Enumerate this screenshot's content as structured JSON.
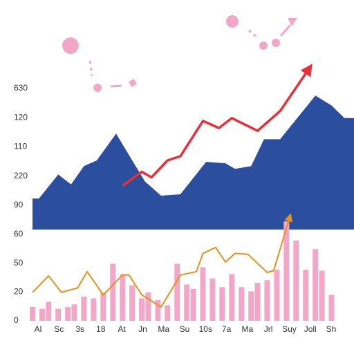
{
  "chart_data": [
    {
      "type": "area",
      "y_labels": [
        "630",
        "120",
        "110",
        "220",
        "90"
      ],
      "xlim": [
        0,
        100
      ],
      "ylim": [
        0,
        120
      ],
      "series": [
        {
          "kind": "area",
          "color": "#2b4f9e",
          "x": [
            0,
            2,
            8,
            12,
            16,
            20,
            26,
            31,
            35,
            40,
            46,
            54,
            60,
            63,
            68,
            72,
            77,
            88,
            93,
            97,
            100
          ],
          "values": [
            22,
            22,
            39,
            32,
            45,
            49,
            68,
            49,
            34,
            24,
            25,
            48,
            47,
            43,
            45,
            64,
            64,
            95,
            88,
            79,
            79
          ]
        },
        {
          "kind": "line",
          "color": "#e8303a",
          "arrow": true,
          "x": [
            28,
            34,
            37,
            42,
            46,
            53,
            58,
            62,
            70,
            77,
            86
          ],
          "values": [
            31,
            41,
            37,
            49,
            52,
            77,
            72,
            79,
            70,
            84,
            114
          ]
        }
      ]
    },
    {
      "type": "bar",
      "y_labels": [
        "60",
        "50",
        "20",
        "0"
      ],
      "x_labels": [
        "Al",
        "Sc",
        "3s",
        "18",
        "At",
        "Jn",
        "Ma",
        "Su",
        "10s",
        "7a",
        "Ma",
        "Jrl",
        "Suy",
        "Joll",
        "Sh"
      ],
      "xlim": [
        0,
        100
      ],
      "ylim": [
        0,
        120
      ],
      "series": [
        {
          "kind": "bar",
          "color": "#f2a7c8",
          "x": [
            0,
            3,
            5,
            8,
            11,
            13,
            16,
            19,
            22,
            25,
            28,
            31,
            34,
            36,
            39,
            42,
            45,
            48,
            50,
            53,
            56,
            59,
            62,
            65,
            68,
            70,
            73,
            76,
            79,
            82,
            85,
            88,
            90,
            93
          ],
          "values": [
            16,
            14,
            22,
            14,
            16,
            19,
            28,
            26,
            32,
            66,
            54,
            41,
            26,
            33,
            24,
            18,
            66,
            42,
            37,
            62,
            49,
            39,
            54,
            39,
            34,
            44,
            47,
            59,
            115,
            93,
            59,
            83,
            58,
            30
          ]
        },
        {
          "kind": "line",
          "color": "#e8901c",
          "arrow": true,
          "x": [
            0,
            5,
            9,
            14,
            17,
            22,
            28,
            30,
            34,
            40,
            46,
            51,
            53,
            57,
            60,
            63,
            67,
            73,
            75,
            80
          ],
          "values": [
            33,
            52,
            33,
            38,
            57,
            30,
            53,
            53,
            30,
            16,
            53,
            57,
            78,
            85,
            68,
            78,
            77,
            56,
            58,
            120
          ]
        }
      ]
    }
  ]
}
